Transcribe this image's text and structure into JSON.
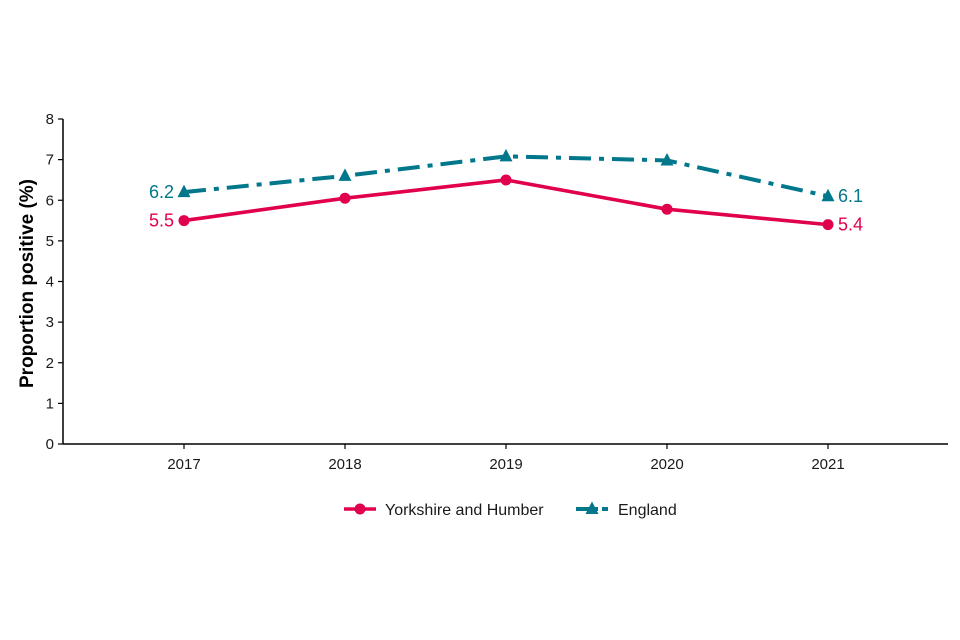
{
  "chart_data": {
    "type": "line",
    "title": "",
    "xlabel": "",
    "ylabel": "Proportion positive (%)",
    "categories": [
      "2017",
      "2018",
      "2019",
      "2020",
      "2021"
    ],
    "ylim": [
      0,
      8
    ],
    "yticks": [
      "0",
      "1",
      "2",
      "3",
      "4",
      "5",
      "6",
      "7",
      "8"
    ],
    "grid": false,
    "legend_position": "bottom",
    "series": [
      {
        "name": "Yorkshire and Humber",
        "values": [
          5.5,
          6.05,
          6.5,
          5.78,
          5.4
        ],
        "color": "#E0004D",
        "marker": "circle",
        "line_style": "solid",
        "end_labels": {
          "first": "5.5",
          "last": "5.4"
        }
      },
      {
        "name": "England",
        "values": [
          6.2,
          6.6,
          7.08,
          6.98,
          6.1
        ],
        "color": "#00778B",
        "marker": "triangle",
        "line_style": "dashdot",
        "end_labels": {
          "first": "6.2",
          "last": "6.1"
        }
      }
    ]
  }
}
